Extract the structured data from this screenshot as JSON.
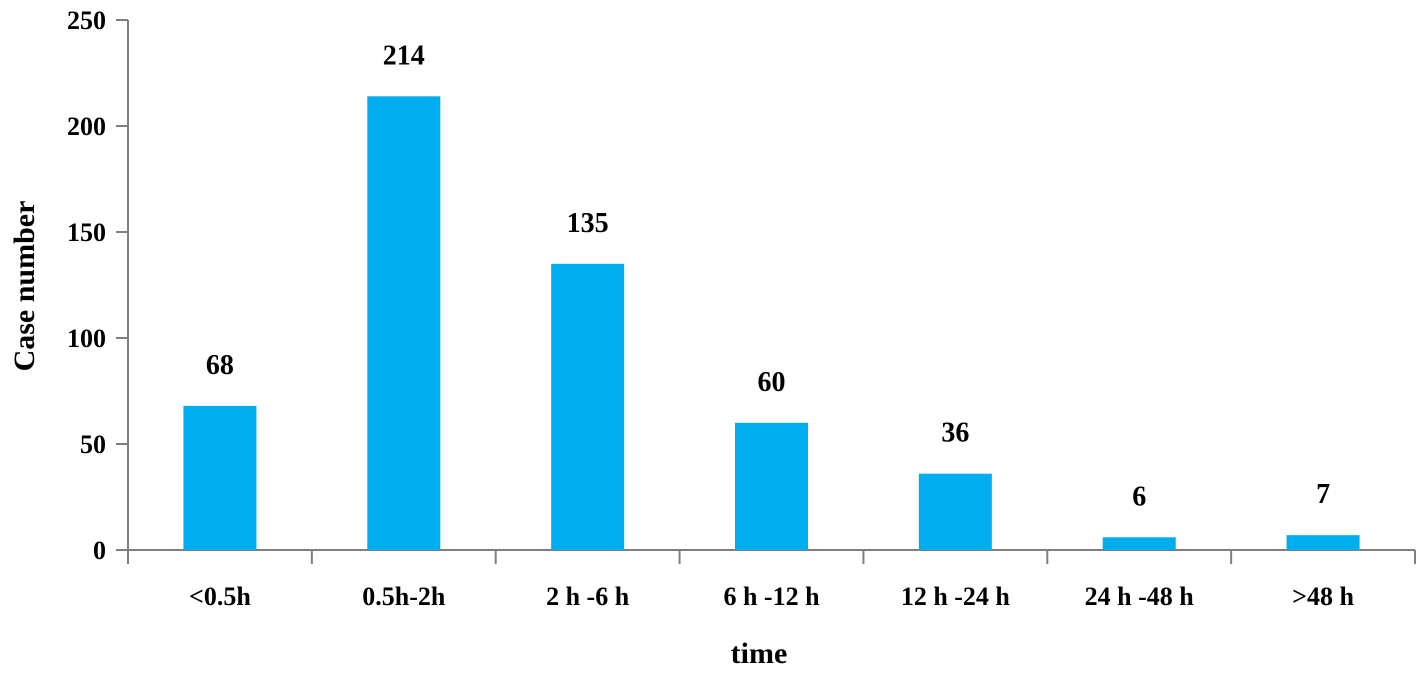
{
  "chart_data": {
    "type": "bar",
    "title": "",
    "xlabel": "time",
    "ylabel": "Case number",
    "categories": [
      "<0.5h",
      "0.5h-2h",
      "2 h -6 h",
      "6 h -12 h",
      "12 h -24 h",
      "24 h -48 h",
      ">48 h"
    ],
    "values": [
      68,
      214,
      135,
      60,
      36,
      6,
      7
    ],
    "ylim": [
      0,
      250
    ],
    "yticks": [
      0,
      50,
      100,
      150,
      200,
      250
    ],
    "grid": false,
    "legend": "none",
    "show_data_labels": true,
    "colors": {
      "bar": "#00aeef",
      "axis": "#7f7f7f",
      "text": "#000000"
    }
  }
}
